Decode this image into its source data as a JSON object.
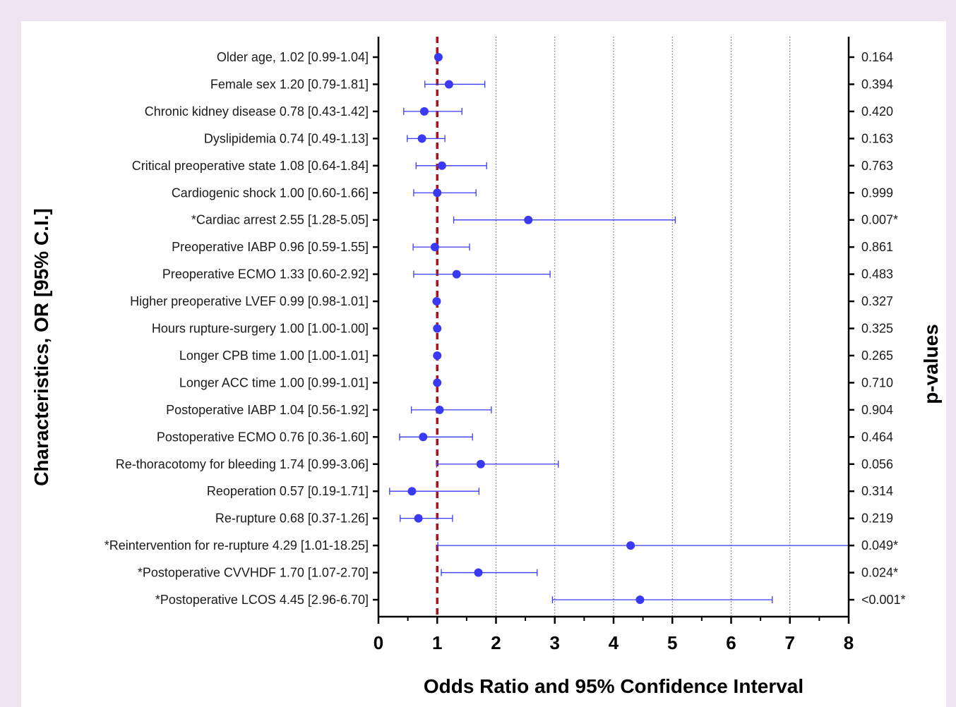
{
  "chart_data": {
    "type": "forest",
    "xlabel": "Odds Ratio and 95% Confidence Interval",
    "ylabel": "Characteristics, OR [95% C.I.]",
    "right_label": "p-values",
    "xlim": [
      0,
      8
    ],
    "x_ticks": [
      "0",
      "1",
      "2",
      "3",
      "4",
      "5",
      "6",
      "7",
      "8"
    ],
    "reference_line": 1,
    "grid": "vertical dotted lines at 2-7",
    "colors": {
      "points": "#3a3af5",
      "reference": "#b0101a"
    },
    "rows": [
      {
        "label": "Older age, 1.02 [0.99-1.04]",
        "or": 1.02,
        "lo": 0.99,
        "hi": 1.04,
        "p": "0.164"
      },
      {
        "label": "Female sex 1.20 [0.79-1.81]",
        "or": 1.2,
        "lo": 0.79,
        "hi": 1.81,
        "p": "0.394"
      },
      {
        "label": "Chronic kidney disease 0.78 [0.43-1.42]",
        "or": 0.78,
        "lo": 0.43,
        "hi": 1.42,
        "p": "0.420"
      },
      {
        "label": "Dyslipidemia 0.74 [0.49-1.13]",
        "or": 0.74,
        "lo": 0.49,
        "hi": 1.13,
        "p": "0.163"
      },
      {
        "label": "Critical preoperative state 1.08 [0.64-1.84]",
        "or": 1.08,
        "lo": 0.64,
        "hi": 1.84,
        "p": "0.763"
      },
      {
        "label": "Cardiogenic shock 1.00 [0.60-1.66]",
        "or": 1.0,
        "lo": 0.6,
        "hi": 1.66,
        "p": "0.999"
      },
      {
        "label": "*Cardiac arrest 2.55 [1.28-5.05]",
        "or": 2.55,
        "lo": 1.28,
        "hi": 5.05,
        "p": "0.007*"
      },
      {
        "label": "Preoperative IABP 0.96 [0.59-1.55]",
        "or": 0.96,
        "lo": 0.59,
        "hi": 1.55,
        "p": "0.861"
      },
      {
        "label": "Preoperative ECMO 1.33 [0.60-2.92]",
        "or": 1.33,
        "lo": 0.6,
        "hi": 2.92,
        "p": "0.483"
      },
      {
        "label": "Higher preoperative LVEF 0.99 [0.98-1.01]",
        "or": 0.99,
        "lo": 0.98,
        "hi": 1.01,
        "p": "0.327"
      },
      {
        "label": "Hours rupture-surgery 1.00 [1.00-1.00]",
        "or": 1.0,
        "lo": 1.0,
        "hi": 1.0,
        "p": "0.325"
      },
      {
        "label": "Longer CPB time 1.00 [1.00-1.01]",
        "or": 1.0,
        "lo": 1.0,
        "hi": 1.01,
        "p": "0.265"
      },
      {
        "label": "Longer ACC time 1.00 [0.99-1.01]",
        "or": 1.0,
        "lo": 0.99,
        "hi": 1.01,
        "p": "0.710"
      },
      {
        "label": "Postoperative IABP 1.04 [0.56-1.92]",
        "or": 1.04,
        "lo": 0.56,
        "hi": 1.92,
        "p": "0.904"
      },
      {
        "label": "Postoperative ECMO 0.76 [0.36-1.60]",
        "or": 0.76,
        "lo": 0.36,
        "hi": 1.6,
        "p": "0.464"
      },
      {
        "label": "Re-thoracotomy for bleeding 1.74 [0.99-3.06]",
        "or": 1.74,
        "lo": 0.99,
        "hi": 3.06,
        "p": "0.056"
      },
      {
        "label": "Reoperation 0.57 [0.19-1.71]",
        "or": 0.57,
        "lo": 0.19,
        "hi": 1.71,
        "p": "0.314"
      },
      {
        "label": "Re-rupture 0.68 [0.37-1.26]",
        "or": 0.68,
        "lo": 0.37,
        "hi": 1.26,
        "p": "0.219"
      },
      {
        "label": "*Reintervention for re-rupture 4.29 [1.01-18.25]",
        "or": 4.29,
        "lo": 1.01,
        "hi": 18.25,
        "p": "0.049*"
      },
      {
        "label": "*Postoperative CVVHDF 1.70 [1.07-2.70]",
        "or": 1.7,
        "lo": 1.07,
        "hi": 2.7,
        "p": "0.024*"
      },
      {
        "label": "*Postoperative LCOS 4.45 [2.96-6.70]",
        "or": 4.45,
        "lo": 2.96,
        "hi": 6.7,
        "p": "<0.001*"
      }
    ]
  }
}
